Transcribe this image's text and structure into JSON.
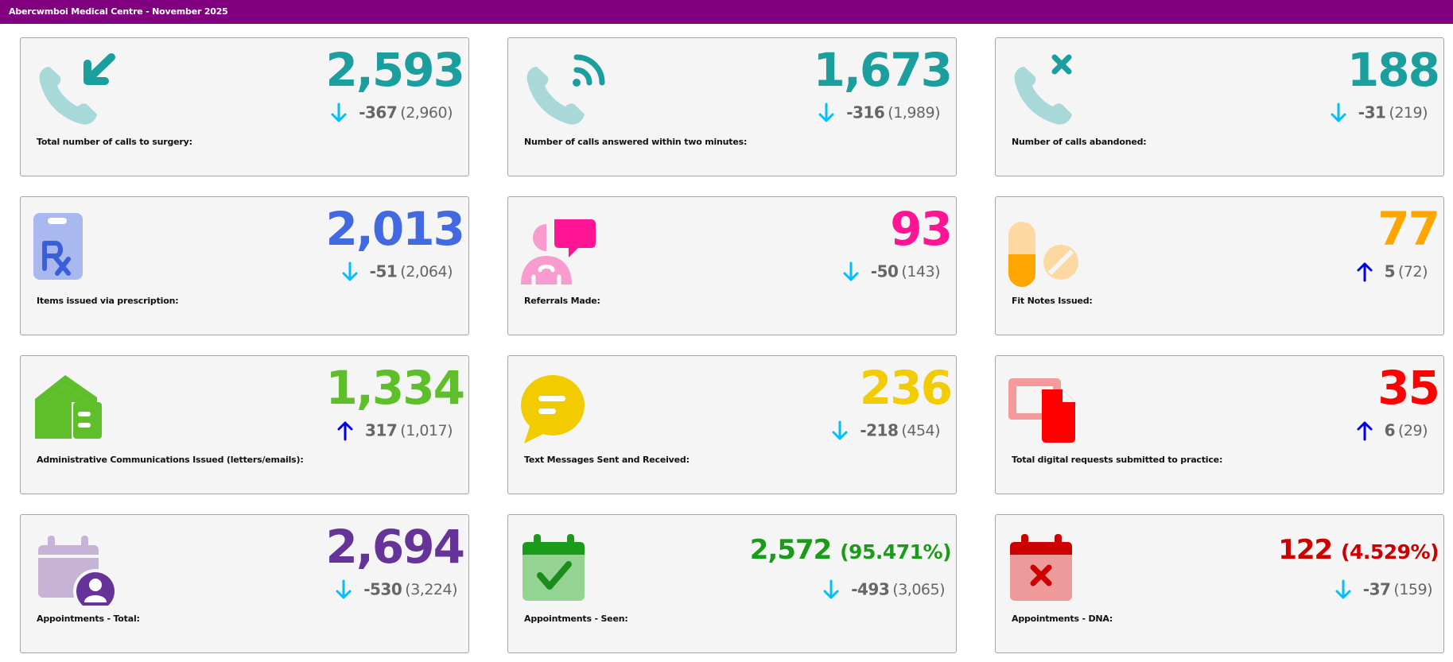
{
  "header": {
    "title": "Abercwmboi Medical Centre - November 2025"
  },
  "cards": [
    {
      "label": "Total number of calls to surgery:",
      "value": "2,593",
      "delta": "-367",
      "prev": "(2,960)",
      "direction": "down",
      "color": "#1a9e9e",
      "icon": "phone-incoming-icon"
    },
    {
      "label": "Number of calls answered within two minutes:",
      "value": "1,673",
      "delta": "-316",
      "prev": "(1,989)",
      "direction": "down",
      "color": "#1a9e9e",
      "icon": "phone-signal-icon"
    },
    {
      "label": "Number of calls abandoned:",
      "value": "188",
      "delta": "-31",
      "prev": "(219)",
      "direction": "down",
      "color": "#1a9e9e",
      "icon": "phone-cancelled-icon"
    },
    {
      "label": "Items issued via prescription:",
      "value": "2,013",
      "delta": "-51",
      "prev": "(2,064)",
      "direction": "down",
      "color": "#4169e1",
      "icon": "prescription-clipboard-icon"
    },
    {
      "label": "Referrals Made:",
      "value": "93",
      "delta": "-50",
      "prev": "(143)",
      "direction": "down",
      "color": "#ff1493",
      "icon": "doctor-speech-icon"
    },
    {
      "label": "Fit Notes Issued:",
      "value": "77",
      "delta": "5",
      "prev": "(72)",
      "direction": "up",
      "color": "#ffa500",
      "icon": "pills-icon"
    },
    {
      "label": "Administrative Communications Issued (letters/emails):",
      "value": "1,334",
      "delta": "317",
      "prev": "(1,017)",
      "direction": "up",
      "color": "#5fbf2a",
      "icon": "house-mail-icon"
    },
    {
      "label": "Text Messages Sent and Received:",
      "value": "236",
      "delta": "-218",
      "prev": "(454)",
      "direction": "down",
      "color": "#f2cc00",
      "icon": "chat-bubble-icon"
    },
    {
      "label": "Total digital requests submitted to practice:",
      "value": "35",
      "delta": "6",
      "prev": "(29)",
      "direction": "up",
      "color": "#ff0000",
      "icon": "digital-document-icon"
    },
    {
      "label": "Appointments - Total:",
      "value": "2,694",
      "delta": "-530",
      "prev": "(3,224)",
      "direction": "down",
      "color": "#663399",
      "icon": "calendar-person-icon"
    },
    {
      "label": "Appointments - Seen:",
      "value": "2,572",
      "pct": "(95.471%)",
      "delta": "-493",
      "prev": "(3,065)",
      "direction": "down",
      "color": "#1a9c1a",
      "icon": "calendar-check-icon"
    },
    {
      "label": "Appointments - DNA:",
      "value": "122",
      "pct": "(4.529%)",
      "delta": "-37",
      "prev": "(159)",
      "direction": "down",
      "color": "#cc0000",
      "icon": "calendar-cross-icon"
    }
  ],
  "arrow_colors": {
    "down": "#00bfff",
    "up": "#0000ee"
  }
}
